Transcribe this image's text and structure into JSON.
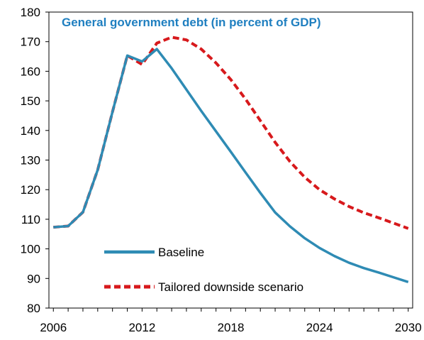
{
  "chart_data": {
    "type": "line",
    "title": "General government debt (in percent of GDP)",
    "xlabel": "",
    "ylabel": "",
    "xlim": [
      2005.7,
      2030.3
    ],
    "ylim": [
      80,
      180
    ],
    "x_ticks": [
      2006,
      2012,
      2018,
      2024,
      2030
    ],
    "y_ticks": [
      80,
      90,
      100,
      110,
      120,
      130,
      140,
      150,
      160,
      170,
      180
    ],
    "grid": false,
    "legend_position": "bottom-left",
    "x": [
      2006,
      2007,
      2008,
      2009,
      2010,
      2011,
      2012,
      2013,
      2014,
      2015,
      2016,
      2017,
      2018,
      2019,
      2020,
      2021,
      2022,
      2023,
      2024,
      2025,
      2026,
      2027,
      2028,
      2029,
      2030
    ],
    "series": [
      {
        "name": "Baseline",
        "color": "#2e8bb4",
        "dash": "solid",
        "values": [
          107.3,
          107.7,
          112.4,
          126.7,
          146.3,
          165.3,
          163.3,
          167.5,
          161.0,
          153.8,
          146.6,
          139.7,
          132.8,
          125.8,
          118.9,
          112.3,
          107.6,
          103.6,
          100.3,
          97.6,
          95.3,
          93.5,
          92.0,
          90.4,
          88.8
        ]
      },
      {
        "name": "Tailored downside scenario",
        "color": "#d7191c",
        "dash": "dashed",
        "values": [
          107.3,
          107.7,
          112.4,
          126.7,
          146.3,
          165.3,
          162.3,
          169.5,
          171.5,
          170.6,
          167.5,
          162.8,
          157.2,
          150.6,
          143.3,
          136.0,
          129.5,
          124.2,
          120.0,
          116.9,
          114.3,
          112.2,
          110.5,
          108.7,
          106.9
        ]
      }
    ]
  }
}
